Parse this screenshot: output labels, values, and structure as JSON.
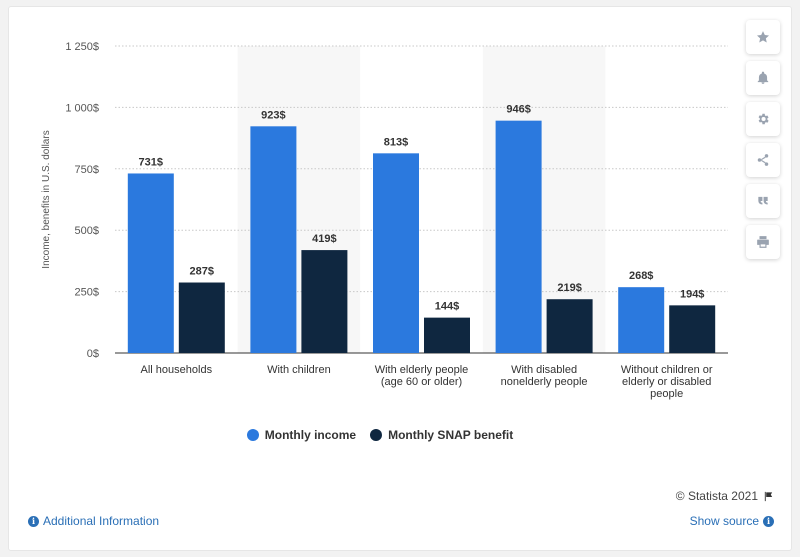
{
  "chart_data": {
    "type": "bar",
    "categories": [
      [
        "All households"
      ],
      [
        "With children"
      ],
      [
        "With elderly people",
        "(age 60 or older)"
      ],
      [
        "With disabled",
        "nonelderly people"
      ],
      [
        "Without children or",
        "elderly or disabled",
        "people"
      ]
    ],
    "series": [
      {
        "name": "Monthly income",
        "values": [
          731,
          923,
          813,
          946,
          268
        ],
        "color": "#2b79de"
      },
      {
        "name": "Monthly SNAP benefit",
        "values": [
          287,
          419,
          144,
          219,
          194
        ],
        "color": "#0f2740"
      }
    ],
    "value_labels": [
      [
        "731$",
        "923$",
        "813$",
        "946$",
        "268$"
      ],
      [
        "287$",
        "419$",
        "144$",
        "219$",
        "194$"
      ]
    ],
    "ylabel": "Income, benefits in U.S. dollars",
    "ylim": [
      0,
      1250
    ],
    "yticks": [
      0,
      250,
      500,
      750,
      1000,
      1250
    ],
    "ytick_labels": [
      "0$",
      "250$",
      "500$",
      "750$",
      "1 000$",
      "1 250$"
    ],
    "grid": true,
    "legend_position": "bottom"
  },
  "legend": {
    "income": "Monthly income",
    "snap": "Monthly SNAP benefit"
  },
  "colors": {
    "income": "#2b79de",
    "snap": "#0f2740",
    "link": "#2a6fb6"
  },
  "footer": {
    "credit": "© Statista 2021",
    "additional_info": "Additional Information",
    "show_source": "Show source"
  },
  "toolbar_icons": [
    "star-icon",
    "bell-icon",
    "gear-icon",
    "share-icon",
    "quote-icon",
    "print-icon"
  ]
}
